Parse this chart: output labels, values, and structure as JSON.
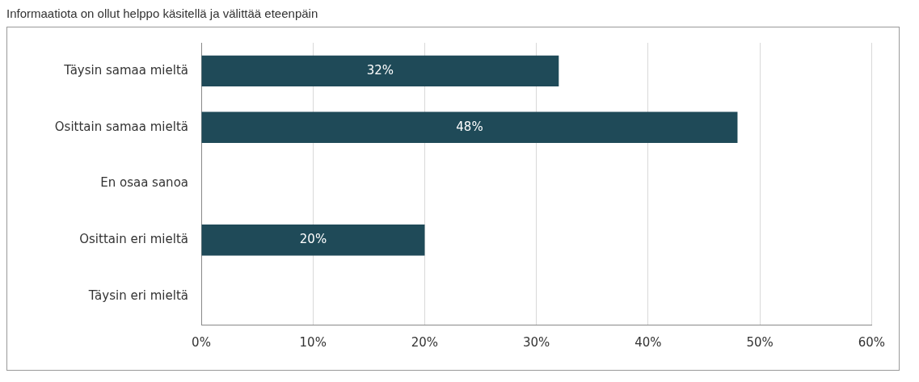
{
  "chart_data": {
    "type": "bar",
    "orientation": "horizontal",
    "title": "Informaatiota on ollut helppo käsitellä ja välittää eteenpäin",
    "categories": [
      "Täysin samaa mieltä",
      "Osittain samaa mieltä",
      "En osaa sanoa",
      "Osittain eri mieltä",
      "Täysin eri mieltä"
    ],
    "values": [
      32,
      48,
      0,
      20,
      0
    ],
    "value_labels": [
      "32%",
      "48%",
      null,
      "20%",
      null
    ],
    "color": "#1f4a58",
    "xlim": [
      0,
      60
    ],
    "xticks": [
      {
        "value": 0,
        "label": "0%"
      },
      {
        "value": 10,
        "label": "10%"
      },
      {
        "value": 20,
        "label": "20%"
      },
      {
        "value": 30,
        "label": "30%"
      },
      {
        "value": 40,
        "label": "40%"
      },
      {
        "value": 50,
        "label": "50%"
      },
      {
        "value": 60,
        "label": "60%"
      }
    ],
    "grid": "x",
    "legend": false
  }
}
